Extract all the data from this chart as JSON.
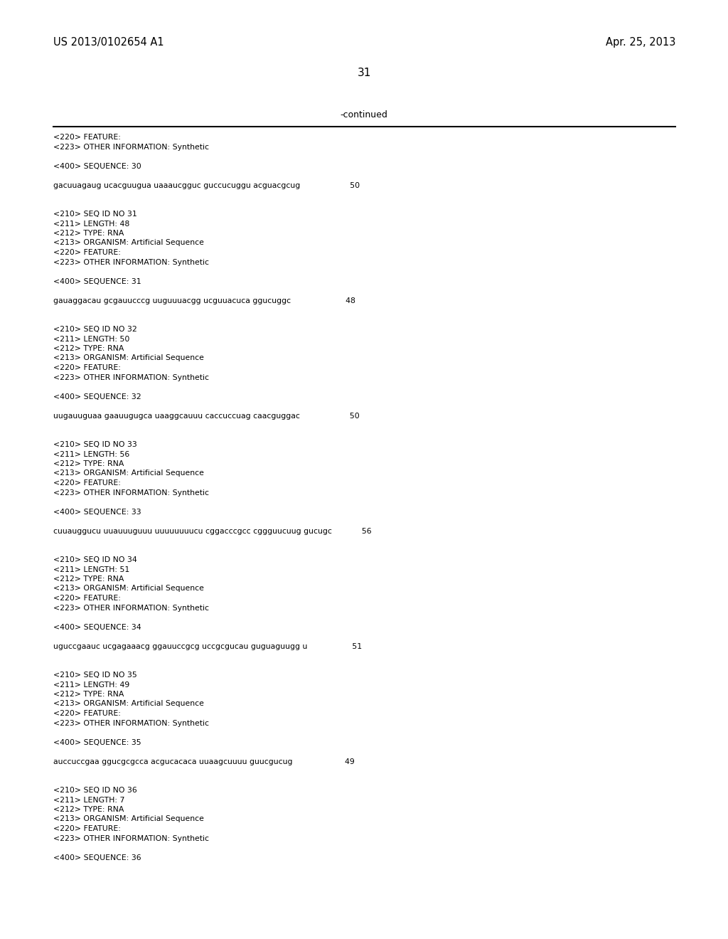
{
  "background_color": "#ffffff",
  "top_left_text": "US 2013/0102654 A1",
  "top_right_text": "Apr. 25, 2013",
  "page_number": "31",
  "continued_label": "-continued",
  "lines": [
    "<220> FEATURE:",
    "<223> OTHER INFORMATION: Synthetic",
    "",
    "<400> SEQUENCE: 30",
    "",
    "gacuuagaug ucacguugua uaaaucgguc guccucuggu acguacgcug                    50",
    "",
    "",
    "<210> SEQ ID NO 31",
    "<211> LENGTH: 48",
    "<212> TYPE: RNA",
    "<213> ORGANISM: Artificial Sequence",
    "<220> FEATURE:",
    "<223> OTHER INFORMATION: Synthetic",
    "",
    "<400> SEQUENCE: 31",
    "",
    "gauaggacau gcgauucccg uuguuuacgg ucguuacuca ggucuggc                      48",
    "",
    "",
    "<210> SEQ ID NO 32",
    "<211> LENGTH: 50",
    "<212> TYPE: RNA",
    "<213> ORGANISM: Artificial Sequence",
    "<220> FEATURE:",
    "<223> OTHER INFORMATION: Synthetic",
    "",
    "<400> SEQUENCE: 32",
    "",
    "uugauuguaa gaauugugca uaaggcauuu caccuccuag caacguggac                    50",
    "",
    "",
    "<210> SEQ ID NO 33",
    "<211> LENGTH: 56",
    "<212> TYPE: RNA",
    "<213> ORGANISM: Artificial Sequence",
    "<220> FEATURE:",
    "<223> OTHER INFORMATION: Synthetic",
    "",
    "<400> SEQUENCE: 33",
    "",
    "cuuauggucu uuauuuguuu uuuuuuuucu cggacccgcc cggguucuug gucugc            56",
    "",
    "",
    "<210> SEQ ID NO 34",
    "<211> LENGTH: 51",
    "<212> TYPE: RNA",
    "<213> ORGANISM: Artificial Sequence",
    "<220> FEATURE:",
    "<223> OTHER INFORMATION: Synthetic",
    "",
    "<400> SEQUENCE: 34",
    "",
    "uguccgaauc ucgagaaacg ggauuccgcg uccgcgucau guguaguugg u                  51",
    "",
    "",
    "<210> SEQ ID NO 35",
    "<211> LENGTH: 49",
    "<212> TYPE: RNA",
    "<213> ORGANISM: Artificial Sequence",
    "<220> FEATURE:",
    "<223> OTHER INFORMATION: Synthetic",
    "",
    "<400> SEQUENCE: 35",
    "",
    "auccuccgaa ggucgcgcca acgucacaca uuaagcuuuu guucgucug                     49",
    "",
    "",
    "<210> SEQ ID NO 36",
    "<211> LENGTH: 7",
    "<212> TYPE: RNA",
    "<213> ORGANISM: Artificial Sequence",
    "<220> FEATURE:",
    "<223> OTHER INFORMATION: Synthetic",
    "",
    "<400> SEQUENCE: 36"
  ]
}
